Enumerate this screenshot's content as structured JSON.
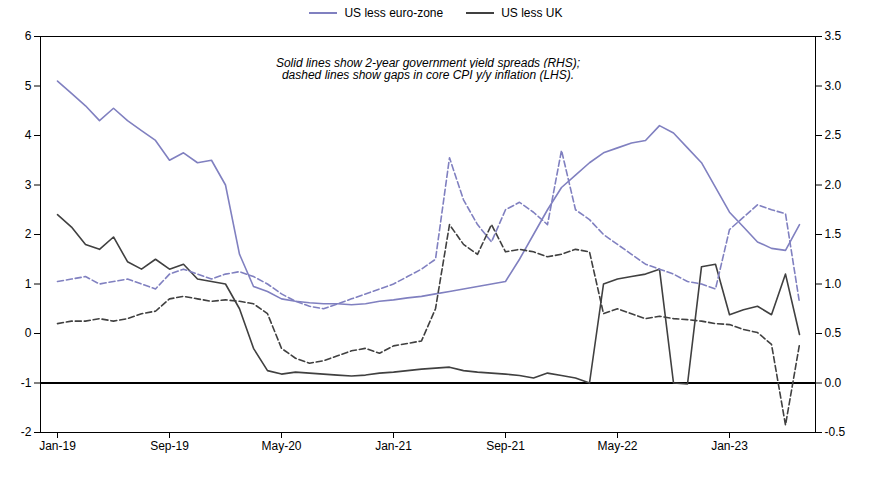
{
  "chart_data": {
    "type": "line",
    "annotation": "Solid lines show 2-year government yield spreads (RHS);\ndashed lines show gaps in core CPI y/y inflation (LHS).",
    "categories": [
      "Jan-19",
      null,
      null,
      null,
      null,
      null,
      null,
      null,
      "Sep-19",
      null,
      null,
      null,
      null,
      null,
      null,
      null,
      "May-20",
      null,
      null,
      null,
      null,
      null,
      null,
      null,
      "Jan-21",
      null,
      null,
      null,
      null,
      null,
      null,
      null,
      "Sep-21",
      null,
      null,
      null,
      null,
      null,
      null,
      null,
      "May-22",
      null,
      null,
      null,
      null,
      null,
      null,
      null,
      "Jan-23",
      null,
      null,
      null,
      null,
      null
    ],
    "series": [
      {
        "name": "US less euro-zone",
        "color": "#8080c0",
        "line_style": "solid",
        "values": [
          5.1,
          4.85,
          4.6,
          4.3,
          4.55,
          4.3,
          4.1,
          3.9,
          3.5,
          3.65,
          3.45,
          3.5,
          3.0,
          1.6,
          0.95,
          0.85,
          0.7,
          0.65,
          0.62,
          0.6,
          0.6,
          0.58,
          0.6,
          0.65,
          0.68,
          0.72,
          0.75,
          0.8,
          0.85,
          0.9,
          0.95,
          1.0,
          1.05,
          1.5,
          2.0,
          2.5,
          2.95,
          3.2,
          3.45,
          3.65,
          3.75,
          3.85,
          3.9,
          4.2,
          4.05,
          3.75,
          3.45,
          2.95,
          2.45,
          2.15,
          1.85,
          1.72,
          1.68,
          2.2
        ]
      },
      {
        "name": "US less UK",
        "color": "#404040",
        "line_style": "solid",
        "values": [
          2.4,
          2.15,
          1.8,
          1.7,
          1.95,
          1.45,
          1.3,
          1.5,
          1.3,
          1.4,
          1.1,
          1.05,
          1.0,
          0.5,
          -0.3,
          -0.75,
          -0.82,
          -0.78,
          -0.8,
          -0.82,
          -0.84,
          -0.86,
          -0.84,
          -0.8,
          -0.78,
          -0.75,
          -0.72,
          -0.7,
          -0.68,
          -0.75,
          -0.78,
          -0.8,
          -0.82,
          -0.85,
          -0.9,
          -0.8,
          -0.85,
          -0.9,
          -1.0,
          1.0,
          1.1,
          1.15,
          1.2,
          1.3,
          -1.0,
          -1.02,
          1.35,
          1.4,
          0.38,
          0.48,
          0.55,
          0.38,
          1.2,
          -0.02
        ]
      },
      {
        "color": "#8080c0",
        "line_style": "dashed",
        "values": [
          1.05,
          1.1,
          1.15,
          1.0,
          1.05,
          1.1,
          1.0,
          0.9,
          1.2,
          1.3,
          1.2,
          1.1,
          1.2,
          1.25,
          1.15,
          1.0,
          0.8,
          0.65,
          0.55,
          0.5,
          0.6,
          0.7,
          0.8,
          0.9,
          1.0,
          1.15,
          1.3,
          1.5,
          3.55,
          2.7,
          2.2,
          1.85,
          2.5,
          2.65,
          2.45,
          2.2,
          3.7,
          2.5,
          2.3,
          2.0,
          1.8,
          1.6,
          1.4,
          1.3,
          1.2,
          1.05,
          1.0,
          0.9,
          2.1,
          2.35,
          2.6,
          2.5,
          2.42,
          0.62
        ]
      },
      {
        "color": "#404040",
        "line_style": "dashed",
        "values": [
          0.2,
          0.25,
          0.25,
          0.3,
          0.25,
          0.3,
          0.4,
          0.45,
          0.7,
          0.75,
          0.7,
          0.65,
          0.68,
          0.65,
          0.6,
          0.4,
          -0.3,
          -0.5,
          -0.6,
          -0.55,
          -0.45,
          -0.35,
          -0.3,
          -0.4,
          -0.25,
          -0.2,
          -0.15,
          0.5,
          2.2,
          1.8,
          1.6,
          2.2,
          1.65,
          1.7,
          1.65,
          1.55,
          1.6,
          1.7,
          1.65,
          0.4,
          0.5,
          0.4,
          0.3,
          0.35,
          0.3,
          0.28,
          0.25,
          0.2,
          0.18,
          0.08,
          0.02,
          -0.22,
          -1.85,
          -0.22
        ]
      }
    ],
    "ylim": [
      -2,
      6
    ],
    "yticks": [
      -2,
      -1,
      0,
      1,
      2,
      3,
      4,
      5,
      6
    ],
    "y2lim": [
      -0.5,
      3.5
    ],
    "y2ticks": [
      -0.5,
      {
        "value": 0,
        "label": "0.0"
      },
      0.5,
      {
        "value": 1,
        "label": "1.0"
      },
      1.5,
      {
        "value": 2,
        "label": "2.0"
      },
      2.5,
      {
        "value": 3,
        "label": "3.0"
      },
      3.5
    ],
    "hline": -1,
    "legend": "top",
    "grid": false
  }
}
